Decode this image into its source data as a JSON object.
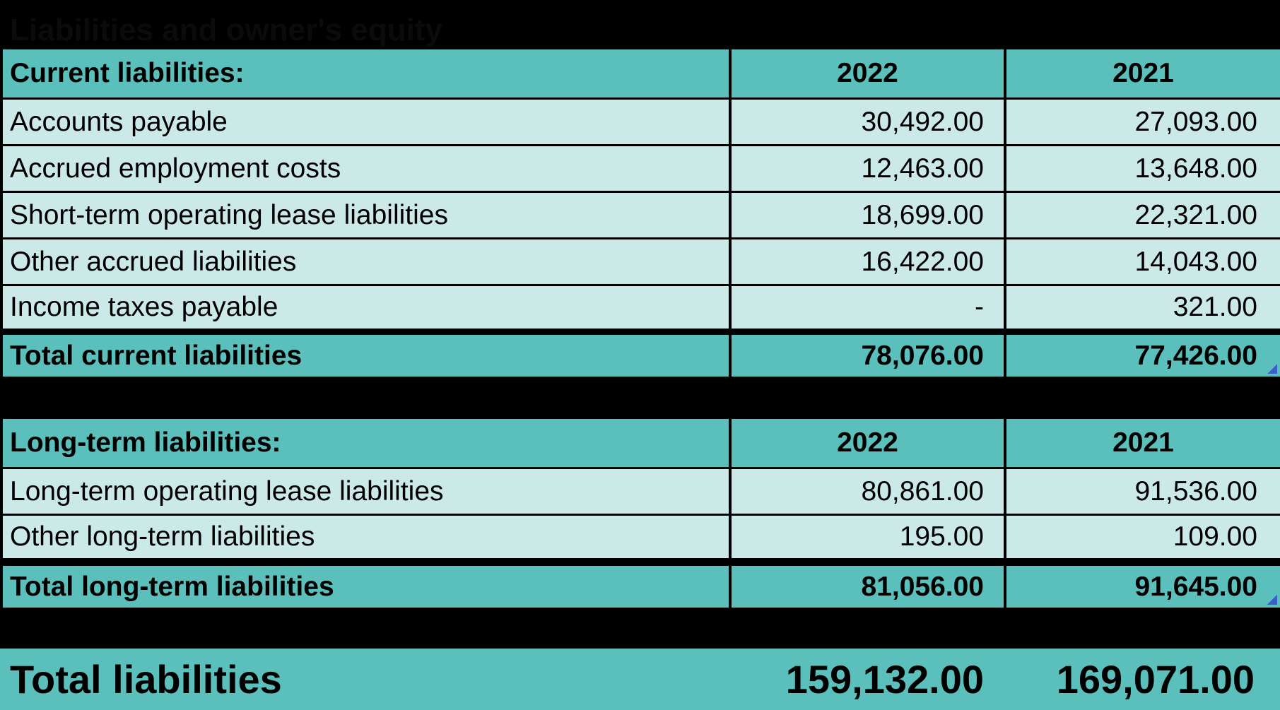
{
  "title": "Liabilities and owner's equity",
  "current": {
    "header": {
      "label": "Current liabilities:",
      "y1": "2022",
      "y2": "2021"
    },
    "rows": [
      {
        "label": "Accounts payable",
        "y1": "30,492.00",
        "y2": "27,093.00"
      },
      {
        "label": "Accrued employment costs",
        "y1": "12,463.00",
        "y2": "13,648.00"
      },
      {
        "label": "Short-term operating lease liabilities",
        "y1": "18,699.00",
        "y2": "22,321.00"
      },
      {
        "label": "Other accrued liabilities",
        "y1": "16,422.00",
        "y2": "14,043.00"
      },
      {
        "label": "Income taxes payable",
        "y1": "-",
        "y2": "321.00"
      }
    ],
    "total": {
      "label": "Total current liabilities",
      "y1": "78,076.00",
      "y2": "77,426.00"
    }
  },
  "longterm": {
    "header": {
      "label": "Long-term liabilities:",
      "y1": "2022",
      "y2": "2021"
    },
    "rows": [
      {
        "label": "Long-term operating lease liabilities",
        "y1": "80,861.00",
        "y2": "91,536.00"
      },
      {
        "label": "Other long-term liabilities",
        "y1": "195.00",
        "y2": "109.00"
      }
    ],
    "total": {
      "label": "Total long-term liabilities",
      "y1": "81,056.00",
      "y2": "91,645.00"
    }
  },
  "grand_total": {
    "label": "Total liabilities",
    "y1": "159,132.00",
    "y2": "169,071.00"
  },
  "colors": {
    "header_bg": "#5bbfbb",
    "row_bg": "#cbe9e7",
    "background": "#000000"
  }
}
